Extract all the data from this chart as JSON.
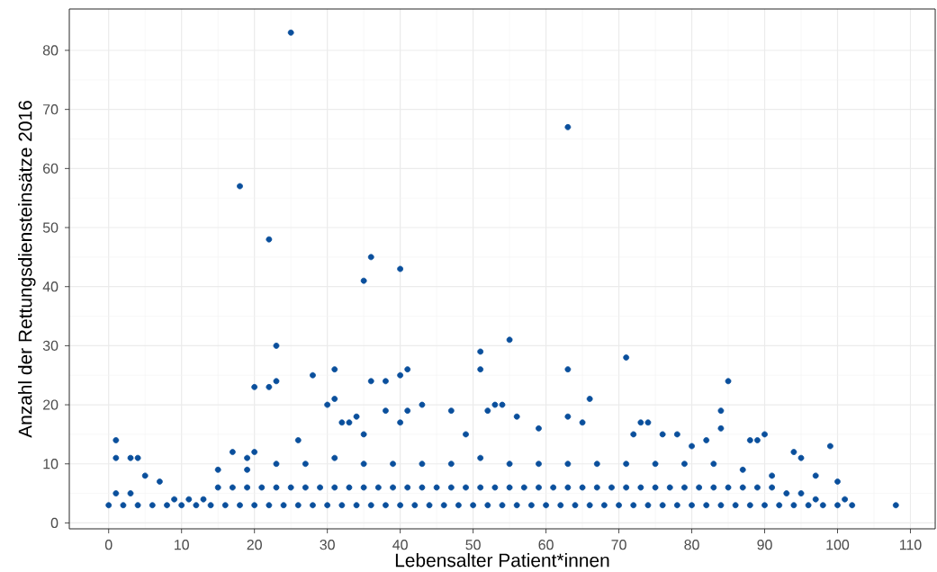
{
  "chart_data": {
    "type": "scatter",
    "xlabel": "Lebensalter Patient*innen",
    "ylabel": "Anzahl der Rettungsdiensteinsätze 2016",
    "xlim": [
      -5.4,
      113.4
    ],
    "ylim": [
      -1,
      87
    ],
    "xticks": [
      0,
      10,
      20,
      30,
      40,
      50,
      60,
      70,
      80,
      90,
      100,
      110
    ],
    "yticks": [
      0,
      10,
      20,
      30,
      40,
      50,
      60,
      70,
      80
    ],
    "grid": true,
    "marker": "circle",
    "series": [
      {
        "color": "#0a4f9c",
        "x": [
          1,
          1,
          3,
          4,
          5,
          7,
          17,
          18,
          19,
          20,
          20,
          22,
          22,
          23,
          23,
          25,
          26,
          28,
          30,
          31,
          31,
          32,
          33,
          34,
          35,
          35,
          36,
          36,
          38,
          38,
          40,
          40,
          40,
          41,
          41,
          43,
          47,
          49,
          51,
          51,
          52,
          53,
          54,
          55,
          56,
          59,
          63,
          63,
          63,
          65,
          66,
          71,
          72,
          73,
          74,
          76,
          78,
          80,
          82,
          84,
          84,
          85,
          88,
          89,
          90,
          94,
          95,
          97,
          99,
          100,
          101,
          102,
          108,
          0,
          2,
          4,
          6,
          8,
          10,
          12,
          14,
          16,
          18,
          20,
          22,
          24,
          26,
          28,
          30,
          32,
          34,
          36,
          38,
          40,
          42,
          44,
          46,
          48,
          50,
          52,
          54,
          56,
          58,
          60,
          62,
          64,
          66,
          68,
          70,
          72,
          74,
          76,
          78,
          80,
          82,
          84,
          86,
          88,
          90,
          92,
          94,
          96,
          98,
          100,
          1,
          3,
          9,
          11,
          13,
          15,
          17,
          19,
          21,
          23,
          25,
          27,
          29,
          31,
          33,
          35,
          37,
          39,
          41,
          43,
          45,
          47,
          49,
          51,
          53,
          55,
          57,
          59,
          61,
          63,
          65,
          67,
          69,
          71,
          73,
          75,
          77,
          79,
          81,
          83,
          85,
          87,
          89,
          91,
          93,
          95,
          97,
          15,
          19,
          23,
          27,
          31,
          35,
          39,
          43,
          47,
          51,
          55,
          59,
          63,
          67,
          71,
          75,
          79,
          83,
          87,
          91
        ],
        "values": [
          14,
          11,
          11,
          11,
          8,
          7,
          12,
          57,
          11,
          23,
          12,
          48,
          23,
          30,
          24,
          83,
          14,
          25,
          20,
          26,
          21,
          17,
          17,
          18,
          41,
          15,
          45,
          24,
          24,
          19,
          43,
          25,
          17,
          26,
          19,
          20,
          19,
          15,
          29,
          26,
          19,
          20,
          20,
          31,
          18,
          16,
          67,
          26,
          18,
          17,
          21,
          28,
          15,
          17,
          17,
          15,
          15,
          13,
          14,
          19,
          16,
          24,
          14,
          14,
          15,
          12,
          11,
          8,
          13,
          7,
          4,
          3,
          3,
          3,
          3,
          3,
          3,
          3,
          3,
          3,
          3,
          3,
          3,
          3,
          3,
          3,
          3,
          3,
          3,
          3,
          3,
          3,
          3,
          3,
          3,
          3,
          3,
          3,
          3,
          3,
          3,
          3,
          3,
          3,
          3,
          3,
          3,
          3,
          3,
          3,
          3,
          3,
          3,
          3,
          3,
          3,
          3,
          3,
          3,
          3,
          3,
          3,
          3,
          3,
          5,
          5,
          4,
          4,
          4,
          6,
          6,
          6,
          6,
          6,
          6,
          6,
          6,
          6,
          6,
          6,
          6,
          6,
          6,
          6,
          6,
          6,
          6,
          6,
          6,
          6,
          6,
          6,
          6,
          6,
          6,
          6,
          6,
          6,
          6,
          6,
          6,
          6,
          6,
          6,
          6,
          6,
          6,
          6,
          5,
          5,
          4,
          9,
          9,
          10,
          10,
          11,
          10,
          10,
          10,
          10,
          11,
          10,
          10,
          10,
          10,
          10,
          10,
          10,
          10,
          9,
          8
        ]
      }
    ]
  }
}
